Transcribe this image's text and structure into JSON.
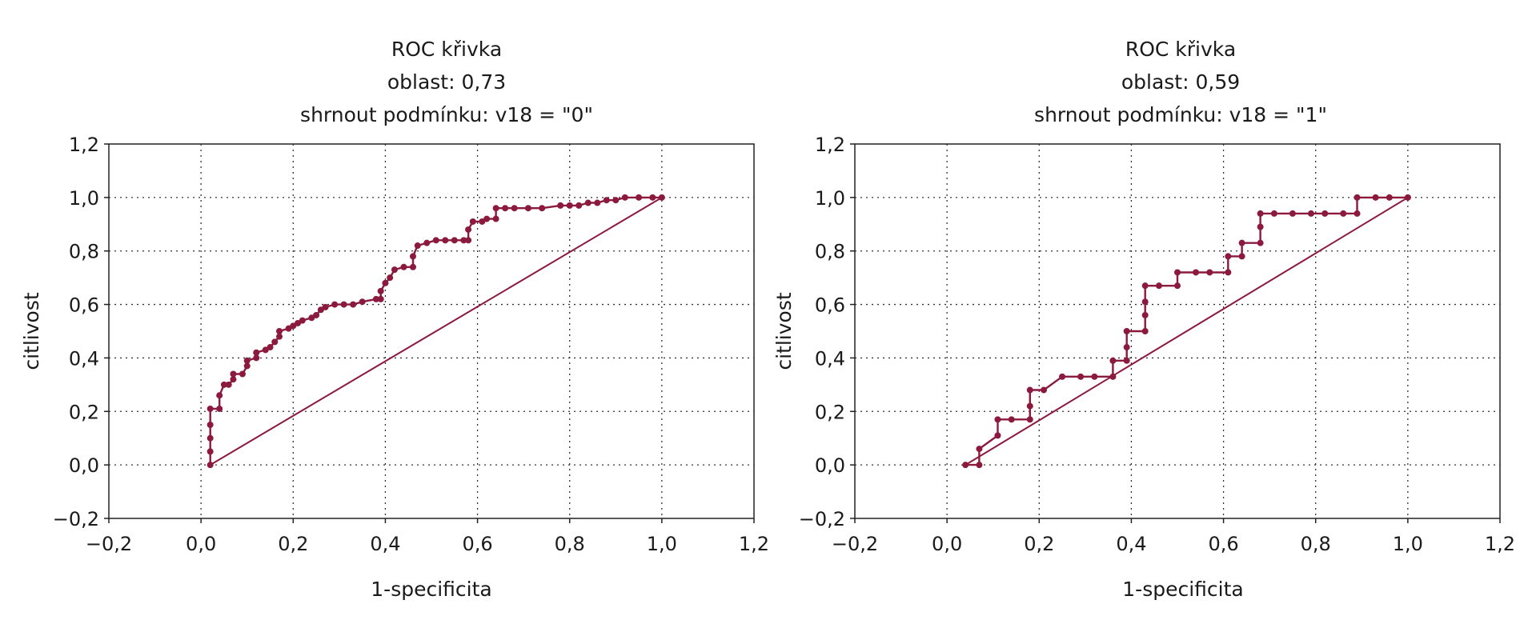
{
  "chart_data": [
    {
      "type": "line",
      "title": [
        "ROC křivka",
        "oblast: 0,73",
        "shrnout podmínku: v18 = \"0\""
      ],
      "xlabel": "1-specificita",
      "ylabel": "citlivost",
      "xlim": [
        -0.2,
        1.2
      ],
      "ylim": [
        -0.2,
        1.2
      ],
      "x_ticks": [
        "−0,2",
        "0,0",
        "0,2",
        "0,4",
        "0,6",
        "0,8",
        "1,0",
        "1,2"
      ],
      "y_ticks": [
        "−0,2",
        "0,0",
        "0,2",
        "0,4",
        "0,6",
        "0,8",
        "1,0",
        "1,2"
      ],
      "grid": true,
      "series": [
        {
          "type": "roc",
          "color": "#8b1a3e",
          "points": [
            [
              0.02,
              0.0
            ],
            [
              0.02,
              0.05
            ],
            [
              0.02,
              0.1
            ],
            [
              0.02,
              0.15
            ],
            [
              0.02,
              0.21
            ],
            [
              0.04,
              0.21
            ],
            [
              0.04,
              0.26
            ],
            [
              0.05,
              0.3
            ],
            [
              0.06,
              0.3
            ],
            [
              0.07,
              0.32
            ],
            [
              0.07,
              0.34
            ],
            [
              0.09,
              0.34
            ],
            [
              0.1,
              0.37
            ],
            [
              0.1,
              0.39
            ],
            [
              0.12,
              0.4
            ],
            [
              0.12,
              0.42
            ],
            [
              0.14,
              0.43
            ],
            [
              0.15,
              0.44
            ],
            [
              0.16,
              0.46
            ],
            [
              0.17,
              0.48
            ],
            [
              0.17,
              0.5
            ],
            [
              0.19,
              0.51
            ],
            [
              0.2,
              0.52
            ],
            [
              0.21,
              0.53
            ],
            [
              0.22,
              0.54
            ],
            [
              0.24,
              0.55
            ],
            [
              0.25,
              0.56
            ],
            [
              0.26,
              0.58
            ],
            [
              0.27,
              0.59
            ],
            [
              0.29,
              0.6
            ],
            [
              0.31,
              0.6
            ],
            [
              0.33,
              0.6
            ],
            [
              0.35,
              0.61
            ],
            [
              0.38,
              0.62
            ],
            [
              0.39,
              0.62
            ],
            [
              0.39,
              0.65
            ],
            [
              0.4,
              0.68
            ],
            [
              0.41,
              0.7
            ],
            [
              0.42,
              0.73
            ],
            [
              0.44,
              0.74
            ],
            [
              0.46,
              0.74
            ],
            [
              0.46,
              0.78
            ],
            [
              0.47,
              0.82
            ],
            [
              0.49,
              0.83
            ],
            [
              0.51,
              0.84
            ],
            [
              0.53,
              0.84
            ],
            [
              0.55,
              0.84
            ],
            [
              0.57,
              0.84
            ],
            [
              0.58,
              0.84
            ],
            [
              0.58,
              0.88
            ],
            [
              0.59,
              0.91
            ],
            [
              0.61,
              0.91
            ],
            [
              0.62,
              0.92
            ],
            [
              0.64,
              0.92
            ],
            [
              0.64,
              0.96
            ],
            [
              0.66,
              0.96
            ],
            [
              0.68,
              0.96
            ],
            [
              0.71,
              0.96
            ],
            [
              0.74,
              0.96
            ],
            [
              0.78,
              0.97
            ],
            [
              0.8,
              0.97
            ],
            [
              0.82,
              0.97
            ],
            [
              0.84,
              0.98
            ],
            [
              0.86,
              0.98
            ],
            [
              0.88,
              0.99
            ],
            [
              0.9,
              0.99
            ],
            [
              0.92,
              1.0
            ],
            [
              0.95,
              1.0
            ],
            [
              0.98,
              1.0
            ],
            [
              1.0,
              1.0
            ]
          ]
        },
        {
          "type": "reference",
          "color": "#8b1a3e",
          "points": [
            [
              0.02,
              0.0
            ],
            [
              1.0,
              1.0
            ]
          ]
        }
      ]
    },
    {
      "type": "line",
      "title": [
        "ROC křivka",
        "oblast: 0,59",
        "shrnout podmínku: v18 = \"1\""
      ],
      "xlabel": "1-specificita",
      "ylabel": "citlivost",
      "xlim": [
        -0.2,
        1.2
      ],
      "ylim": [
        -0.2,
        1.2
      ],
      "x_ticks": [
        "−0,2",
        "0,0",
        "0,2",
        "0,4",
        "0,6",
        "0,8",
        "1,0",
        "1,2"
      ],
      "y_ticks": [
        "−0,2",
        "0,0",
        "0,2",
        "0,4",
        "0,6",
        "0,8",
        "1,0",
        "1,2"
      ],
      "grid": true,
      "series": [
        {
          "type": "roc",
          "color": "#8b1a3e",
          "points": [
            [
              0.04,
              0.0
            ],
            [
              0.07,
              0.0
            ],
            [
              0.07,
              0.06
            ],
            [
              0.11,
              0.11
            ],
            [
              0.11,
              0.17
            ],
            [
              0.14,
              0.17
            ],
            [
              0.18,
              0.17
            ],
            [
              0.18,
              0.22
            ],
            [
              0.18,
              0.28
            ],
            [
              0.21,
              0.28
            ],
            [
              0.25,
              0.33
            ],
            [
              0.29,
              0.33
            ],
            [
              0.32,
              0.33
            ],
            [
              0.36,
              0.33
            ],
            [
              0.36,
              0.39
            ],
            [
              0.39,
              0.39
            ],
            [
              0.39,
              0.44
            ],
            [
              0.39,
              0.5
            ],
            [
              0.43,
              0.5
            ],
            [
              0.43,
              0.56
            ],
            [
              0.43,
              0.61
            ],
            [
              0.43,
              0.67
            ],
            [
              0.46,
              0.67
            ],
            [
              0.5,
              0.67
            ],
            [
              0.5,
              0.72
            ],
            [
              0.54,
              0.72
            ],
            [
              0.57,
              0.72
            ],
            [
              0.61,
              0.72
            ],
            [
              0.61,
              0.78
            ],
            [
              0.64,
              0.78
            ],
            [
              0.64,
              0.83
            ],
            [
              0.68,
              0.83
            ],
            [
              0.68,
              0.89
            ],
            [
              0.68,
              0.94
            ],
            [
              0.71,
              0.94
            ],
            [
              0.75,
              0.94
            ],
            [
              0.79,
              0.94
            ],
            [
              0.82,
              0.94
            ],
            [
              0.86,
              0.94
            ],
            [
              0.89,
              0.94
            ],
            [
              0.89,
              1.0
            ],
            [
              0.93,
              1.0
            ],
            [
              0.96,
              1.0
            ],
            [
              1.0,
              1.0
            ]
          ]
        },
        {
          "type": "reference",
          "color": "#8b1a3e",
          "points": [
            [
              0.04,
              0.0
            ],
            [
              1.0,
              1.0
            ]
          ]
        }
      ]
    }
  ]
}
